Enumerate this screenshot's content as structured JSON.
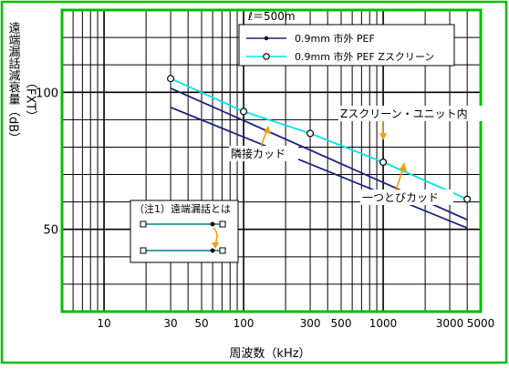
{
  "chart_data": {
    "type": "line",
    "x_scale": "log",
    "y_scale": "linear",
    "xlim": [
      5,
      5000
    ],
    "ylim": [
      20,
      130
    ],
    "grid": true,
    "xlabel": "周波数（kHz）",
    "ylabel": "遠端漏話減衰量（dB）",
    "ylabel_sub": "（FXT）",
    "x_ticks": [
      10,
      30,
      50,
      100,
      300,
      500,
      1000,
      3000,
      5000
    ],
    "x_tick_labels": [
      "10",
      "30",
      "50",
      "100",
      "300",
      "500",
      "1000",
      "3000",
      "5000"
    ],
    "y_ticks": [
      50,
      100
    ],
    "y_tick_labels": [
      "50",
      "100"
    ],
    "legend_condition": "ℓ＝500m",
    "series": [
      {
        "name": "0.9mm 市外 PEF",
        "color": "#1a237e",
        "lines": [
          {
            "label": "隣接カッド",
            "points": [
              [
                30,
                94.5
              ],
              [
                4000,
                50.5
              ]
            ]
          },
          {
            "label": "一つとびカッド",
            "points": [
              [
                30,
                101.5
              ],
              [
                4000,
                53.5
              ]
            ]
          }
        ]
      },
      {
        "name": "0.9mm 市外 PEF Zスクリーン",
        "color": "#00e5e5",
        "lines": [
          {
            "label": "Zスクリーン・ユニット内",
            "points": [
              [
                30,
                105
              ],
              [
                100,
                93
              ],
              [
                300,
                85
              ],
              [
                1000,
                74.5
              ],
              [
                4000,
                61
              ]
            ]
          }
        ]
      }
    ],
    "annotations": [
      {
        "text": "Zスクリーン・ユニット内"
      },
      {
        "text": "隣接カッド"
      },
      {
        "text": "一つとびカッド"
      }
    ],
    "note": {
      "title": "（注1）遠端漏話とは"
    }
  },
  "colors": {
    "frame": "#00c000",
    "grid": "#000000",
    "series_dark": "#1a237e",
    "series_cyan": "#00e5e5",
    "arrow": "#f39c12",
    "note_line": "#008080"
  }
}
